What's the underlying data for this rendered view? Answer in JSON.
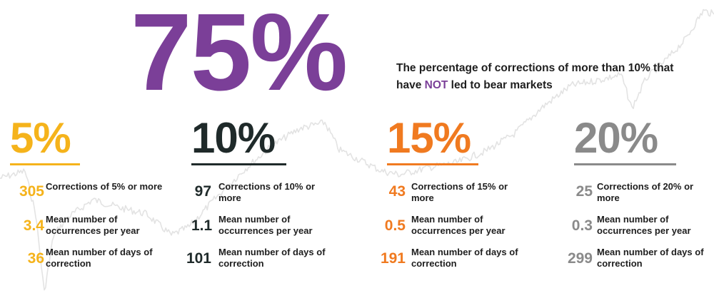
{
  "hero": {
    "value": "75%",
    "desc_before": "The percentage of corrections of more than 10% that have ",
    "desc_highlight": "NOT",
    "desc_after": " led to bear markets",
    "color": "#7b3f98"
  },
  "columns": [
    {
      "heading": "5%",
      "color": "#f5b31b",
      "stats": [
        {
          "value": "305",
          "label": "Corrections of 5% or more"
        },
        {
          "value": "3.4",
          "label": "Mean number of occurrences per year"
        },
        {
          "value": "36",
          "label": "Mean number of days of correction"
        }
      ]
    },
    {
      "heading": "10%",
      "color": "#1f2a2a",
      "stats": [
        {
          "value": "97",
          "label": "Corrections of 10% or more"
        },
        {
          "value": "1.1",
          "label": "Mean number of occurrences per year"
        },
        {
          "value": "101",
          "label": "Mean number of days of correction"
        }
      ]
    },
    {
      "heading": "15%",
      "color": "#f07a20",
      "stats": [
        {
          "value": "43",
          "label": "Corrections of 15% or more"
        },
        {
          "value": "0.5",
          "label": "Mean number of occurrences per year"
        },
        {
          "value": "191",
          "label": "Mean number of days of correction"
        }
      ]
    },
    {
      "heading": "20%",
      "color": "#8a8a8a",
      "stats": [
        {
          "value": "25",
          "label": "Corrections of 20% or more"
        },
        {
          "value": "0.3",
          "label": "Mean number of occurrences per year"
        },
        {
          "value": "299",
          "label": "Mean number of days of correction"
        }
      ]
    }
  ],
  "background_line_color": "#e3e3e3"
}
